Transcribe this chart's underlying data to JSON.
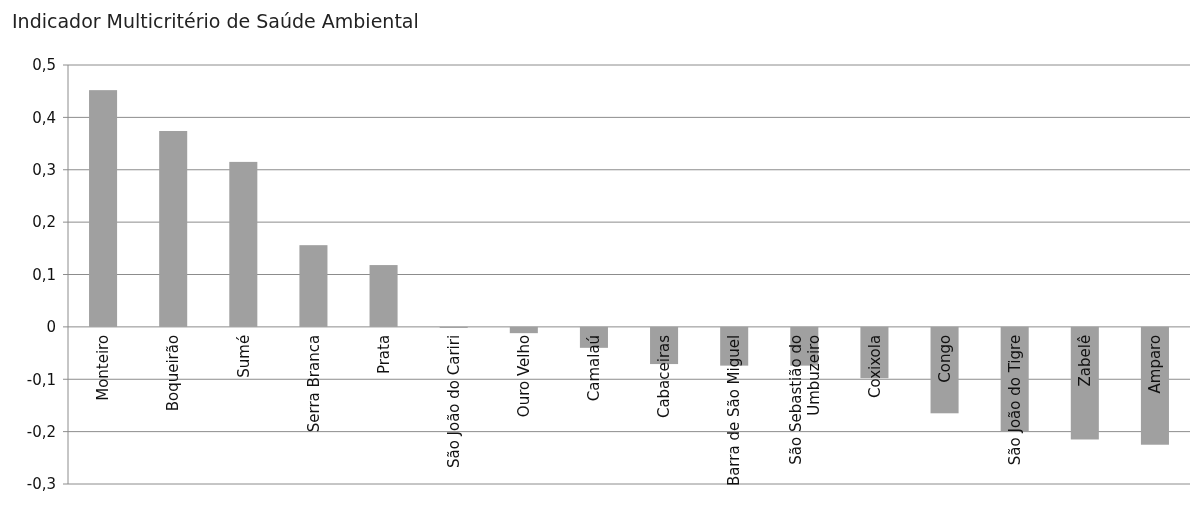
{
  "chart_data": {
    "type": "bar",
    "title": "Indicador Multicritério de Saúde Ambiental",
    "categories": [
      "Monteiro",
      "Boqueirão",
      "Sumé",
      "Serra Branca",
      "Prata",
      "São João do Cariri",
      "Ouro Velho",
      "Camalaú",
      "Cabaceiras",
      "Barra de São Miguel",
      "São Sebastião do Umbuzeiro",
      "Coxixola",
      "Congo",
      "São João do Tigre",
      "Zabelê",
      "Amparo"
    ],
    "values": [
      0.452,
      0.374,
      0.315,
      0.156,
      0.118,
      -0.002,
      -0.012,
      -0.04,
      -0.071,
      -0.074,
      -0.074,
      -0.098,
      -0.165,
      -0.2,
      -0.215,
      -0.225
    ],
    "color": "#a0a0a0",
    "ylim": [
      -0.3,
      0.5
    ],
    "yticks": [
      {
        "value": -0.3,
        "label": "-0,3"
      },
      {
        "value": -0.2,
        "label": "-0,2"
      },
      {
        "value": -0.1,
        "label": "-0,1"
      },
      0,
      {
        "value": 0.1,
        "label": "0,1"
      },
      {
        "value": 0.2,
        "label": "0,2"
      },
      {
        "value": 0.3,
        "label": "0,3"
      },
      {
        "value": 0.4,
        "label": "0,4"
      },
      {
        "value": 0.5,
        "label": "0,5"
      }
    ],
    "grid": "y"
  }
}
